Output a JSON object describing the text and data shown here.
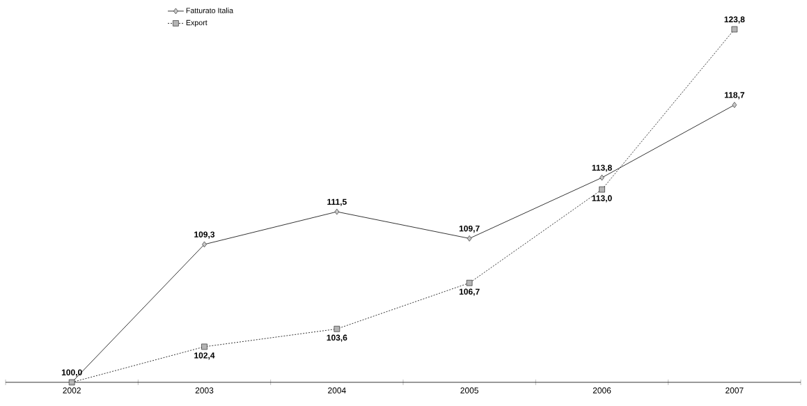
{
  "chart_data": {
    "type": "line",
    "categories": [
      "2002",
      "2003",
      "2004",
      "2005",
      "2006",
      "2007"
    ],
    "series": [
      {
        "name": "Fatturato Italia",
        "color": "#c8c8c8",
        "marker": "diamond",
        "line_style": "solid",
        "values": [
          100.0,
          109.3,
          111.5,
          109.7,
          113.8,
          118.7
        ],
        "value_labels": [
          "100,0",
          "109,3",
          "111,5",
          "109,7",
          "113,8",
          "118,7"
        ]
      },
      {
        "name": "Export",
        "color": "#b4b4b4",
        "marker": "square",
        "line_style": "dotted",
        "values": [
          100.0,
          102.4,
          103.6,
          106.7,
          113.0,
          123.8
        ],
        "value_labels": [
          null,
          "102,4",
          "103,6",
          "106,7",
          "113,0",
          "123,8"
        ]
      }
    ],
    "legend": "top left"
  }
}
